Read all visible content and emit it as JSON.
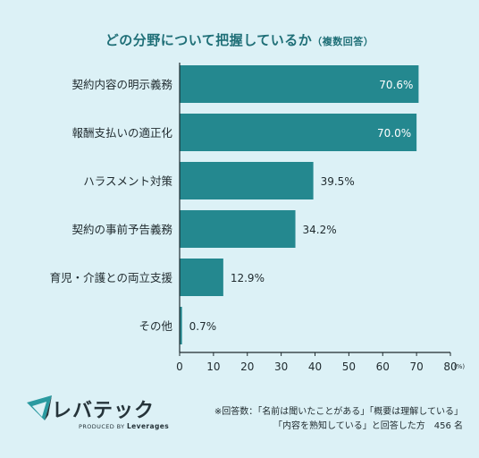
{
  "header": {
    "title": "どの分野について把握しているか",
    "subtitle": "（複数回答）"
  },
  "chart_data": {
    "type": "bar",
    "orientation": "horizontal",
    "categories": [
      "契約内容の明示義務",
      "報酬支払いの適正化",
      "ハラスメント対策",
      "契約の事前予告義務",
      "育児・介護との両立支援",
      "その他"
    ],
    "values": [
      70.6,
      70.0,
      39.5,
      34.2,
      12.9,
      0.7
    ],
    "value_labels": [
      "70.6%",
      "70.0%",
      "39.5%",
      "34.2%",
      "12.9%",
      "0.7%"
    ],
    "xlim": [
      0,
      80
    ],
    "xticks": [
      "0",
      "10",
      "20",
      "30",
      "40",
      "50",
      "60",
      "70",
      "80"
    ],
    "x_unit": "(%)",
    "bar_color": "#24888f",
    "grid": false
  },
  "footer": {
    "logo_text": "レバテック",
    "logo_sub_prefix": "PRODUCED BY",
    "logo_sub_brand": "Leverages",
    "note_line1": "※回答数：「名前は聞いたことがある」「概要は理解している」",
    "note_line2": "「内容を熟知している」と回答した方　456 名"
  }
}
